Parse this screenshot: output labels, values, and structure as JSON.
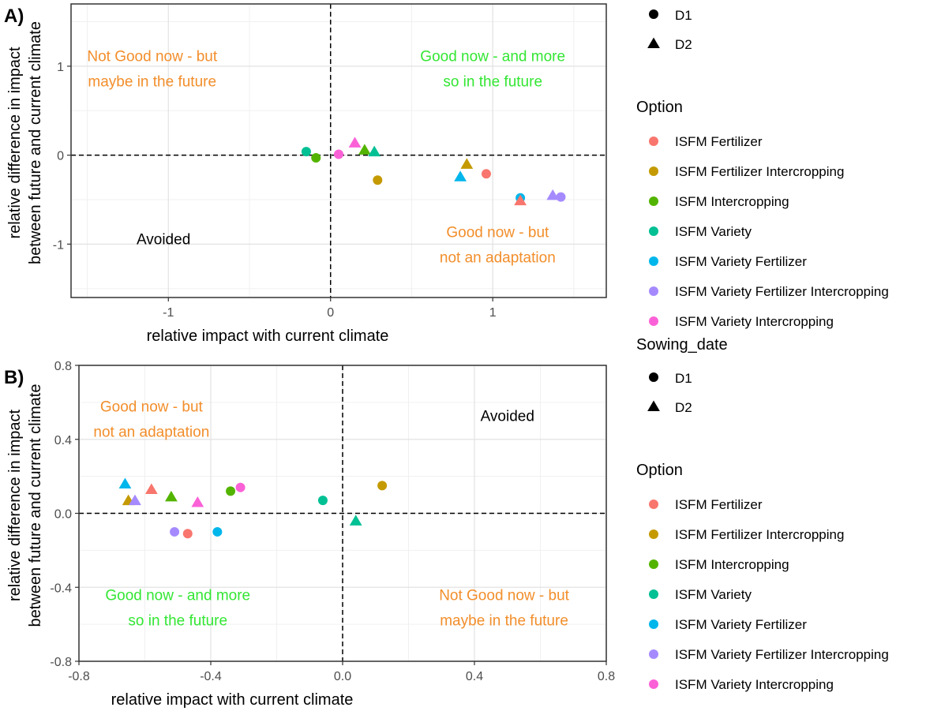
{
  "legend_top": {
    "shapes": [
      {
        "shape": "circle",
        "label": "D1"
      },
      {
        "shape": "triangle",
        "label": "D2"
      }
    ],
    "option_title": "Option",
    "options": [
      {
        "label": "ISFM Fertilizer",
        "color": "#F8766D"
      },
      {
        "label": "ISFM Fertilizer Intercropping",
        "color": "#C49A00"
      },
      {
        "label": "ISFM Intercropping",
        "color": "#53B400"
      },
      {
        "label": "ISFM Variety",
        "color": "#00C094"
      },
      {
        "label": "ISFM Variety Fertilizer",
        "color": "#00B6EB"
      },
      {
        "label": "ISFM Variety Fertilizer Intercropping",
        "color": "#A58AFF"
      },
      {
        "label": "ISFM Variety Intercropping",
        "color": "#FB61D7"
      }
    ]
  },
  "legend_bottom": {
    "shape_title": "Sowing_date",
    "shapes": [
      {
        "shape": "circle",
        "label": "D1"
      },
      {
        "shape": "triangle",
        "label": "D2"
      }
    ],
    "option_title": "Option",
    "options": [
      {
        "label": "ISFM Fertilizer",
        "color": "#F8766D"
      },
      {
        "label": "ISFM Fertilizer Intercropping",
        "color": "#C49A00"
      },
      {
        "label": "ISFM Intercropping",
        "color": "#53B400"
      },
      {
        "label": "ISFM Variety",
        "color": "#00C094"
      },
      {
        "label": "ISFM Variety Fertilizer",
        "color": "#00B6EB"
      },
      {
        "label": "ISFM Variety Fertilizer Intercropping",
        "color": "#A58AFF"
      },
      {
        "label": "ISFM Variety Intercropping",
        "color": "#FB61D7"
      }
    ]
  },
  "colors": {
    "orange": "#F28E2B",
    "green": "#33E633",
    "black": "#000000"
  },
  "chart_data": [
    {
      "type": "scatter",
      "panel_label": "A)",
      "xlabel": "relative impact with current climate",
      "ylabel_lines": [
        "relative difference in impact",
        "between future and current climate"
      ],
      "xlim": [
        -1.6,
        1.7
      ],
      "ylim": [
        -1.6,
        1.7
      ],
      "xticks": [
        -1,
        0,
        1
      ],
      "xtick_labels": [
        "-1",
        "0",
        "1"
      ],
      "yticks": [
        -1,
        0,
        1
      ],
      "ytick_labels": [
        "-1",
        "0",
        "1"
      ],
      "annotations": [
        {
          "lines": [
            "Not Good now - but",
            "maybe in the future"
          ],
          "x": -1.1,
          "y": 0.95,
          "color": "orange"
        },
        {
          "lines": [
            "Good now - and more",
            "so in the future"
          ],
          "x": 1.0,
          "y": 0.95,
          "color": "green"
        },
        {
          "lines": [
            "Avoided"
          ],
          "x": -1.03,
          "y": -1.0,
          "color": "black"
        },
        {
          "lines": [
            "Good now - but",
            "not an adaptation"
          ],
          "x": 1.03,
          "y": -1.03,
          "color": "orange"
        }
      ],
      "points": [
        {
          "option": "ISFM Variety",
          "shape": "circle",
          "x": -0.15,
          "y": 0.04
        },
        {
          "option": "ISFM Intercropping",
          "shape": "circle",
          "x": -0.09,
          "y": -0.03
        },
        {
          "option": "ISFM Variety Intercropping",
          "shape": "circle",
          "x": 0.05,
          "y": 0.01
        },
        {
          "option": "ISFM Variety Intercropping",
          "shape": "triangle",
          "x": 0.15,
          "y": 0.14
        },
        {
          "option": "ISFM Intercropping",
          "shape": "triangle",
          "x": 0.21,
          "y": 0.06
        },
        {
          "option": "ISFM Variety",
          "shape": "triangle",
          "x": 0.27,
          "y": 0.04
        },
        {
          "option": "ISFM Fertilizer Intercropping",
          "shape": "circle",
          "x": 0.29,
          "y": -0.28
        },
        {
          "option": "ISFM Variety Fertilizer",
          "shape": "triangle",
          "x": 0.8,
          "y": -0.24
        },
        {
          "option": "ISFM Fertilizer Intercropping",
          "shape": "triangle",
          "x": 0.84,
          "y": -0.1
        },
        {
          "option": "ISFM Fertilizer",
          "shape": "circle",
          "x": 0.96,
          "y": -0.21
        },
        {
          "option": "ISFM Variety Fertilizer",
          "shape": "circle",
          "x": 1.17,
          "y": -0.48
        },
        {
          "option": "ISFM Fertilizer",
          "shape": "triangle",
          "x": 1.17,
          "y": -0.51
        },
        {
          "option": "ISFM Variety Fertilizer Intercropping",
          "shape": "triangle",
          "x": 1.37,
          "y": -0.45
        },
        {
          "option": "ISFM Variety Fertilizer Intercropping",
          "shape": "circle",
          "x": 1.42,
          "y": -0.47
        }
      ]
    },
    {
      "type": "scatter",
      "panel_label": "B)",
      "xlabel": "relative impact with current climate",
      "ylabel_lines": [
        "relative difference in impact",
        "between future and current climate"
      ],
      "xlim": [
        -0.8,
        0.8
      ],
      "ylim": [
        -0.8,
        0.8
      ],
      "xticks": [
        -0.8,
        -0.4,
        0.0,
        0.4,
        0.8
      ],
      "xtick_labels": [
        "-0.8",
        "-0.4",
        "0.0",
        "0.4",
        "0.8"
      ],
      "yticks": [
        -0.8,
        -0.4,
        0.0,
        0.4,
        0.8
      ],
      "ytick_labels": [
        "-0.8",
        "-0.4",
        "0.0",
        "0.4",
        "0.8"
      ],
      "annotations": [
        {
          "lines": [
            "Good now - but",
            "not an adaptation"
          ],
          "x": -0.58,
          "y": 0.5,
          "color": "orange"
        },
        {
          "lines": [
            "Avoided"
          ],
          "x": 0.5,
          "y": 0.5,
          "color": "black"
        },
        {
          "lines": [
            "Good now - and more",
            "so in the future"
          ],
          "x": -0.5,
          "y": -0.52,
          "color": "green"
        },
        {
          "lines": [
            "Not Good now - but",
            "maybe in the future"
          ],
          "x": 0.49,
          "y": -0.52,
          "color": "orange"
        }
      ],
      "points": [
        {
          "option": "ISFM Variety Fertilizer",
          "shape": "triangle",
          "x": -0.66,
          "y": 0.16
        },
        {
          "option": "ISFM Fertilizer Intercropping",
          "shape": "triangle",
          "x": -0.65,
          "y": 0.07
        },
        {
          "option": "ISFM Variety Fertilizer Intercropping",
          "shape": "triangle",
          "x": -0.63,
          "y": 0.07
        },
        {
          "option": "ISFM Fertilizer",
          "shape": "triangle",
          "x": -0.58,
          "y": 0.13
        },
        {
          "option": "ISFM Intercropping",
          "shape": "triangle",
          "x": -0.52,
          "y": 0.09
        },
        {
          "option": "ISFM Variety Fertilizer Intercropping",
          "shape": "circle",
          "x": -0.51,
          "y": -0.1
        },
        {
          "option": "ISFM Fertilizer",
          "shape": "circle",
          "x": -0.47,
          "y": -0.11
        },
        {
          "option": "ISFM Variety Intercropping",
          "shape": "triangle",
          "x": -0.44,
          "y": 0.06
        },
        {
          "option": "ISFM Variety Fertilizer",
          "shape": "circle",
          "x": -0.38,
          "y": -0.1
        },
        {
          "option": "ISFM Intercropping",
          "shape": "circle",
          "x": -0.34,
          "y": 0.12
        },
        {
          "option": "ISFM Variety Intercropping",
          "shape": "circle",
          "x": -0.31,
          "y": 0.14
        },
        {
          "option": "ISFM Variety",
          "shape": "circle",
          "x": -0.06,
          "y": 0.07
        },
        {
          "option": "ISFM Variety",
          "shape": "triangle",
          "x": 0.04,
          "y": -0.04
        },
        {
          "option": "ISFM Fertilizer Intercropping",
          "shape": "circle",
          "x": 0.12,
          "y": 0.15
        }
      ]
    }
  ]
}
